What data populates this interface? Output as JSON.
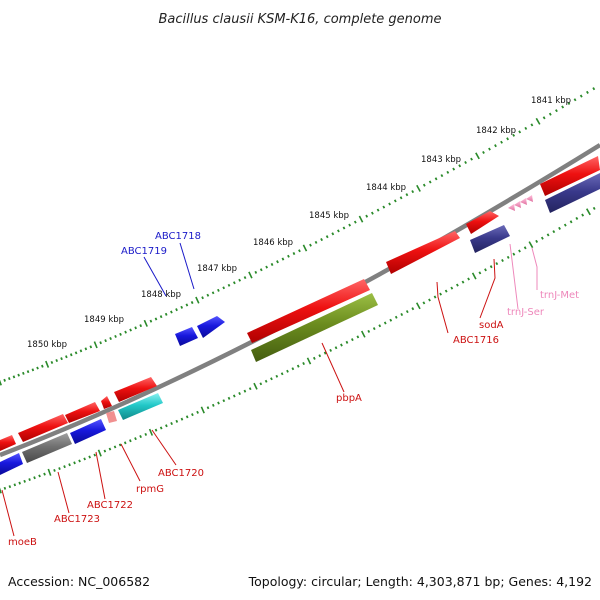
{
  "title": "Bacillus clausii KSM-K16, complete genome",
  "footer": {
    "accession": "Accession: NC_006582",
    "summary": "Topology: circular; Length: 4,303,871 bp; Genes: 4,192"
  },
  "ruler_labels": [
    "1841 kbp",
    "1842 kbp",
    "1843 kbp",
    "1844 kbp",
    "1845 kbp",
    "1846 kbp",
    "1847 kbp",
    "1848 kbp",
    "1849 kbp",
    "1850 kbp"
  ],
  "gene_labels": {
    "abc1718": "ABC1718",
    "abc1719": "ABC1719",
    "trnj_met": "trnJ-Met",
    "trnj_ser": "trnJ-Ser",
    "soda": "sodA",
    "abc1716": "ABC1716",
    "pbpa": "pbpA",
    "abc1720": "ABC1720",
    "rpmg": "rpmG",
    "abc1722": "ABC1722",
    "abc1723": "ABC1723",
    "moeb": "moeB"
  },
  "colors": {
    "cds_forward": "#ee1111",
    "cds_reverse_blue": "#1818dd",
    "cds_reverse_purple": "#3a3a8c",
    "cds_green": "#6b8c1e",
    "cds_cyan": "#22c8c8",
    "cds_gray": "#707070",
    "trna": "#ee88bb",
    "backbone": "#808080",
    "ticks": "#2a8a2a",
    "blue_label": "#1a1ac8",
    "red_label": "#cc1111",
    "pink_label": "#ee88bb"
  }
}
